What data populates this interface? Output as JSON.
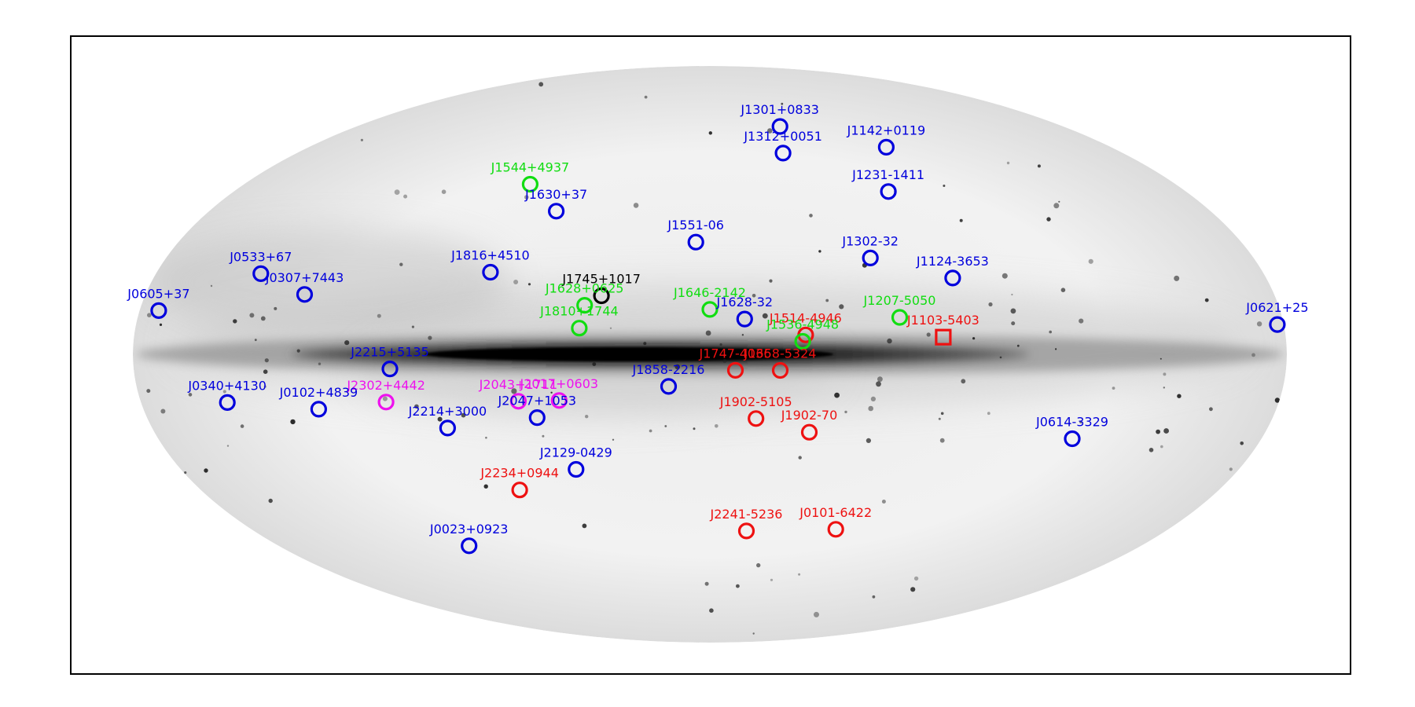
{
  "chart_data": {
    "type": "scatter",
    "projection": "aitoff",
    "coordinates": "galactic",
    "title": "",
    "xlabel": "",
    "ylabel": "",
    "grid": false,
    "legend": "none",
    "background": "Fermi-LAT gamma-ray all-sky map, inverted grayscale",
    "colors": {
      "blue": "#0000dd",
      "red": "#ee1111",
      "green": "#11dd11",
      "magenta": "#ee11ee",
      "black": "#000000"
    },
    "points": [
      {
        "name": "J1301+0833",
        "l": -50,
        "b": 70,
        "color": "blue",
        "marker": "circle"
      },
      {
        "name": "J1142+0119",
        "l": -95,
        "b": 60,
        "color": "blue",
        "marker": "circle"
      },
      {
        "name": "J1312+0051",
        "l": -40,
        "b": 62,
        "color": "blue",
        "marker": "circle"
      },
      {
        "name": "J1231-1411",
        "l": -75,
        "b": 48,
        "color": "blue",
        "marker": "circle"
      },
      {
        "name": "J1544+4937",
        "l": 78,
        "b": 50,
        "color": "green",
        "marker": "circle"
      },
      {
        "name": "J1630+37",
        "l": 60,
        "b": 43,
        "color": "blue",
        "marker": "circle"
      },
      {
        "name": "J1551-06",
        "l": 5,
        "b": 35,
        "color": "blue",
        "marker": "circle"
      },
      {
        "name": "J1302-32",
        "l": -55,
        "b": 29,
        "color": "blue",
        "marker": "circle"
      },
      {
        "name": "J1124-3653",
        "l": -80,
        "b": 22,
        "color": "blue",
        "marker": "circle"
      },
      {
        "name": "J1816+4510",
        "l": 73,
        "b": 24,
        "color": "blue",
        "marker": "circle"
      },
      {
        "name": "J1745+1017",
        "l": 35,
        "b": 18,
        "color": "black",
        "marker": "circle"
      },
      {
        "name": "J0533+67",
        "l": 147,
        "b": 19,
        "color": "blue",
        "marker": "circle"
      },
      {
        "name": "J0307+7443",
        "l": 130,
        "b": 15,
        "color": "blue",
        "marker": "circle"
      },
      {
        "name": "J0605+37",
        "l": 174,
        "b": 9,
        "color": "blue",
        "marker": "circle"
      },
      {
        "name": "J1628+0625",
        "l": 40,
        "b": 15,
        "color": "green",
        "marker": "circle"
      },
      {
        "name": "J1810+1744",
        "l": 41,
        "b": 8,
        "color": "green",
        "marker": "circle"
      },
      {
        "name": "J1646-2142",
        "l": 0,
        "b": 14,
        "color": "green",
        "marker": "circle"
      },
      {
        "name": "J1628-32",
        "l": -11,
        "b": 11,
        "color": "blue",
        "marker": "circle"
      },
      {
        "name": "J1514-4946",
        "l": -30,
        "b": 6,
        "color": "red",
        "marker": "circle"
      },
      {
        "name": "J1536-4948",
        "l": -29,
        "b": 4,
        "color": "green",
        "marker": "circle"
      },
      {
        "name": "J1207-5050",
        "l": -60,
        "b": 11,
        "color": "green",
        "marker": "circle"
      },
      {
        "name": "J1103-5403",
        "l": -73,
        "b": 5,
        "color": "red",
        "marker": "square"
      },
      {
        "name": "J0621+25",
        "l": -178,
        "b": 6,
        "color": "blue",
        "marker": "circle"
      },
      {
        "name": "J2215+5135",
        "l": 100,
        "b": -4,
        "color": "blue",
        "marker": "circle"
      },
      {
        "name": "J1747-4036",
        "l": -8,
        "b": -5,
        "color": "red",
        "marker": "circle"
      },
      {
        "name": "J1658-5324",
        "l": -22,
        "b": -5,
        "color": "red",
        "marker": "circle"
      },
      {
        "name": "J1858-2216",
        "l": 13,
        "b": -10,
        "color": "blue",
        "marker": "circle"
      },
      {
        "name": "J0340+4130",
        "l": 153,
        "b": -11,
        "color": "blue",
        "marker": "circle"
      },
      {
        "name": "J2302+4442",
        "l": 103,
        "b": -13,
        "color": "magenta",
        "marker": "circle"
      },
      {
        "name": "J2043+1711",
        "l": 61,
        "b": -14,
        "color": "magenta",
        "marker": "circle"
      },
      {
        "name": "J2047+1053",
        "l": 56,
        "b": -19,
        "color": "blue",
        "marker": "circle"
      },
      {
        "name": "J2017+0603",
        "l": 48,
        "b": -14,
        "color": "magenta",
        "marker": "circle"
      },
      {
        "name": "J0102+4839",
        "l": 125,
        "b": -14,
        "color": "blue",
        "marker": "circle"
      },
      {
        "name": "J2214+3000",
        "l": 86,
        "b": -21,
        "color": "blue",
        "marker": "circle"
      },
      {
        "name": "J1902-5105",
        "l": -15,
        "b": -20,
        "color": "red",
        "marker": "circle"
      },
      {
        "name": "J1902-70",
        "l": -33,
        "b": -24,
        "color": "red",
        "marker": "circle"
      },
      {
        "name": "J0614-3329",
        "l": -120,
        "b": -22,
        "color": "blue",
        "marker": "circle"
      },
      {
        "name": "J2129-0429",
        "l": 48,
        "b": -35,
        "color": "blue",
        "marker": "circle"
      },
      {
        "name": "J2234+0944",
        "l": 72,
        "b": -40,
        "color": "red",
        "marker": "circle"
      },
      {
        "name": "J0023+0923",
        "l": 113,
        "b": -53,
        "color": "blue",
        "marker": "circle"
      },
      {
        "name": "J2241-5236",
        "l": -17,
        "b": -55,
        "color": "red",
        "marker": "circle"
      },
      {
        "name": "J0101-6422",
        "l": -57,
        "b": -53,
        "color": "red",
        "marker": "circle"
      }
    ]
  }
}
